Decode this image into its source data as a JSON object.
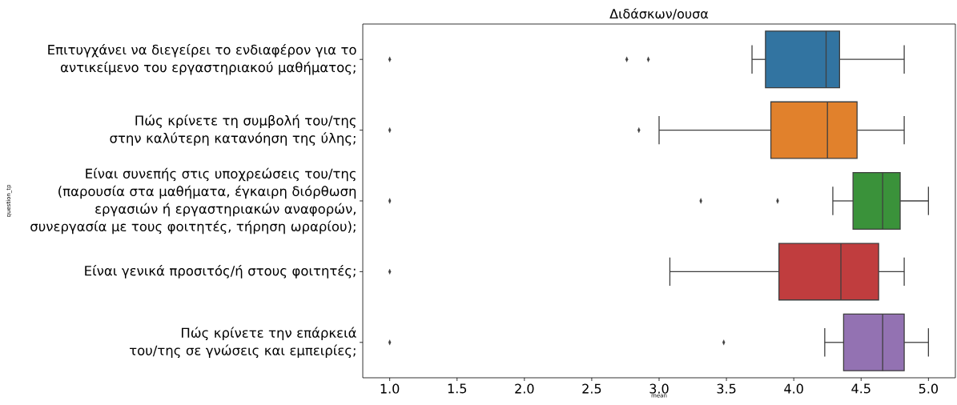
{
  "chart_data": {
    "type": "box",
    "title": "Διδάσκων/ουσα",
    "xlabel": "mean",
    "ylabel": "question_tp",
    "orientation": "horizontal",
    "marker": "diamond",
    "categories": [
      "Επιτυγχάνει να διεγείρει το ενδιαφέρον για το αντικείμενο του εργαστηριακού μαθήματος;",
      "Πώς κρίνετε τη συμβολή του/της στην καλύτερη κατανόηση της ύλης;",
      "Είναι συνεπής στις υποχρεώσεις του/της (παρουσία στα μαθήματα, έγκαιρη διόρθωση εργασιών ή εργαστηριακών αναφορών, συνεργασία με τους φοιτητές, τήρηση ωραρίου);",
      "Είναι γενικά προσιτός/ή στους φοιτητές;",
      "Πώς κρίνετε την επάρκειά του/της σε γνώσεις και εμπειρίες;"
    ],
    "colors": [
      "#3274a1",
      "#e1812c",
      "#3a923a",
      "#c03d3e",
      "#9372b2"
    ],
    "boxes": [
      {
        "low": 3.69,
        "q1": 3.79,
        "median": 4.24,
        "q3": 4.34,
        "high": 4.82,
        "outliers": [
          1.0,
          2.76,
          2.92
        ]
      },
      {
        "low": 3.0,
        "q1": 3.83,
        "median": 4.25,
        "q3": 4.47,
        "high": 4.82,
        "outliers": [
          1.0,
          2.85
        ]
      },
      {
        "low": 4.29,
        "q1": 4.44,
        "median": 4.66,
        "q3": 4.79,
        "high": 5.0,
        "outliers": [
          1.0,
          3.31,
          3.88
        ]
      },
      {
        "low": 3.08,
        "q1": 3.89,
        "median": 4.35,
        "q3": 4.63,
        "high": 4.82,
        "outliers": [
          1.0
        ]
      },
      {
        "low": 4.23,
        "q1": 4.37,
        "median": 4.66,
        "q3": 4.82,
        "high": 5.0,
        "outliers": [
          1.0,
          3.48
        ]
      }
    ],
    "xlim": [
      0.8,
      5.2
    ],
    "xticks": [
      {
        "value": 1.0,
        "label": "1.0"
      },
      {
        "value": 1.5,
        "label": "1.5"
      },
      {
        "value": 2.0,
        "label": "2.0"
      },
      {
        "value": 2.5,
        "label": "2.5"
      },
      {
        "value": 3.0,
        "label": "3.0"
      },
      {
        "value": 3.5,
        "label": "3.5"
      },
      {
        "value": 4.0,
        "label": "4.0"
      },
      {
        "value": 4.5,
        "label": "4.5"
      },
      {
        "value": 5.0,
        "label": "5.0"
      }
    ]
  }
}
